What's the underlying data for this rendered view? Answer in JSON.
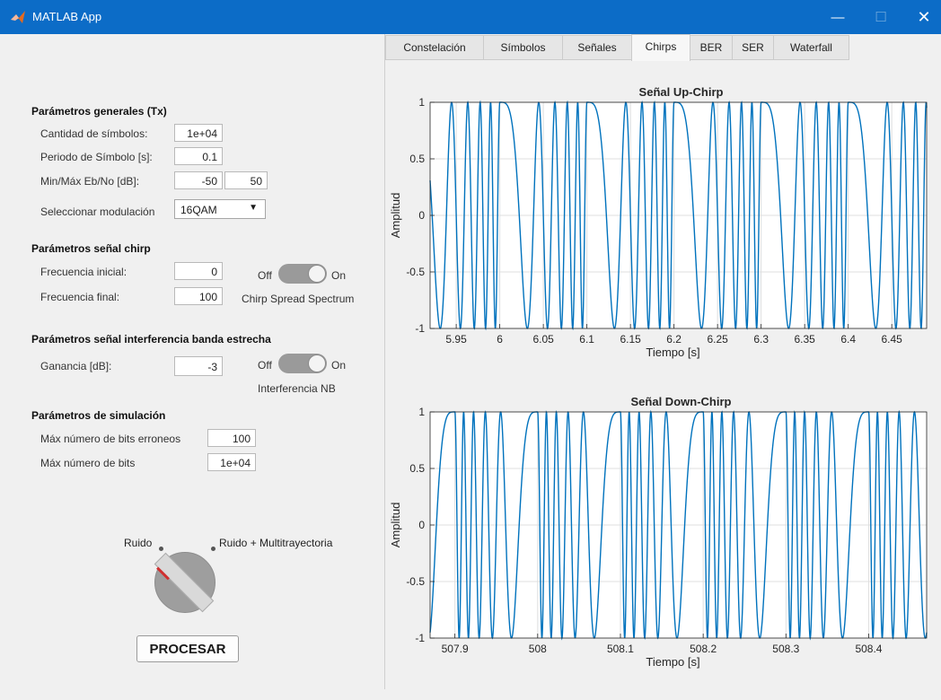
{
  "window": {
    "title": "MATLAB App",
    "controls": [
      "—",
      "☐",
      "✕"
    ]
  },
  "params_general": {
    "title": "Parámetros generales (Tx)",
    "num_symbols_label": "Cantidad de símbolos:",
    "num_symbols_value": "1e+04",
    "symbol_period_label": "Periodo de Símbolo [s]:",
    "symbol_period_value": "0.1",
    "ebno_label": "Min/Máx Eb/No [dB]:",
    "ebno_min": "-50",
    "ebno_max": "50",
    "modulation_label": "Seleccionar modulación",
    "modulation_value": "16QAM"
  },
  "params_chirp": {
    "title": "Parámetros señal chirp",
    "freq_start_label": "Frecuencia inicial:",
    "freq_start_value": "0",
    "freq_end_label": "Frecuencia final:",
    "freq_end_value": "100",
    "switch_off": "Off",
    "switch_on": "On",
    "switch_label": "Chirp Spread Spectrum",
    "switch_state": "On"
  },
  "params_nb": {
    "title": "Parámetros señal interferencia banda estrecha",
    "gain_label": "Ganancia [dB]:",
    "gain_value": "-3",
    "switch_off": "Off",
    "switch_on": "On",
    "switch_label": "Interferencia NB",
    "switch_state": "On"
  },
  "params_sim": {
    "title": "Parámetros de simulación",
    "max_err_bits_label": "Máx número de bits erroneos",
    "max_err_bits_value": "100",
    "max_bits_label": "Máx número de bits",
    "max_bits_value": "1e+04"
  },
  "channel_knob": {
    "option_left": "Ruido",
    "option_right": "Ruido + Multitrayectoria",
    "selected": "Ruido"
  },
  "process_button": "PROCESAR",
  "tabs": [
    {
      "label": "Constelación"
    },
    {
      "label": "Símbolos"
    },
    {
      "label": "Señales"
    },
    {
      "label": "Chirps"
    },
    {
      "label": "BER"
    },
    {
      "label": "SER"
    },
    {
      "label": "Waterfall"
    }
  ],
  "active_tab": "Chirps",
  "colors": {
    "titlebar": "#0c6cc7",
    "line": "#0072bd",
    "knob_marker": "#d03030"
  },
  "chart_data": [
    {
      "type": "line",
      "title": "Señal Up-Chirp",
      "xlabel": "Tiempo [s]",
      "ylabel": "Amplitud",
      "xlim": [
        5.92,
        6.49
      ],
      "ylim": [
        -1,
        1
      ],
      "xticks": [
        5.95,
        6,
        6.05,
        6.1,
        6.15,
        6.2,
        6.25,
        6.3,
        6.35,
        6.4,
        6.45
      ],
      "xtick_labels": [
        "5.95",
        "6",
        "6.05",
        "6.1",
        "6.15",
        "6.2",
        "6.25",
        "6.3",
        "6.35",
        "6.4",
        "6.45"
      ],
      "yticks": [
        -1,
        -0.5,
        0,
        0.5,
        1
      ],
      "ytick_labels": [
        "-1",
        "-0.5",
        "0",
        "0.5",
        "1"
      ],
      "grid": true,
      "chirp": {
        "period": 0.1,
        "f_start": 0,
        "f_end": 100,
        "direction": "up"
      }
    },
    {
      "type": "line",
      "title": "Señal Down-Chirp",
      "xlabel": "Tiempo [s]",
      "ylabel": "Amplitud",
      "xlim": [
        507.87,
        508.47
      ],
      "ylim": [
        -1,
        1
      ],
      "xticks": [
        507.9,
        508,
        508.1,
        508.2,
        508.3,
        508.4
      ],
      "xtick_labels": [
        "507.9",
        "508",
        "508.1",
        "508.2",
        "508.3",
        "508.4"
      ],
      "yticks": [
        -1,
        -0.5,
        0,
        0.5,
        1
      ],
      "ytick_labels": [
        "-1",
        "-0.5",
        "0",
        "0.5",
        "1"
      ],
      "grid": true,
      "chirp": {
        "period": 0.1,
        "f_start": 0,
        "f_end": 100,
        "direction": "down"
      }
    }
  ]
}
